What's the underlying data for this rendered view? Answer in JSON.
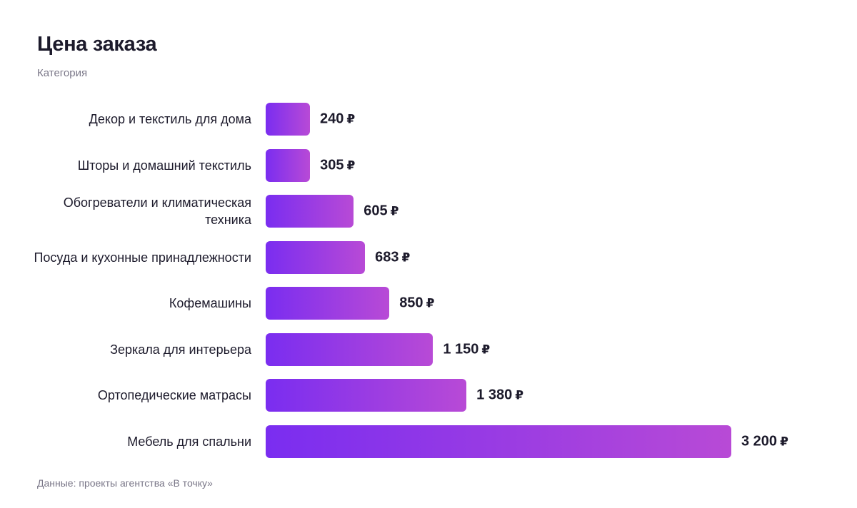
{
  "chart_data": {
    "type": "bar",
    "orientation": "horizontal",
    "title": "Цена заказа",
    "subtitle": "Категория",
    "source": "Данные: проекты агентства «В точку»",
    "currency": "₽",
    "categories": [
      "Декор и текстиль для дома",
      "Шторы и домашний текстиль",
      "Обогреватели и климатическая техника",
      "Посуда и кухонные принадлежности",
      "Кофемашины",
      "Зеркала для интерьера",
      "Ортопедические матрасы",
      "Мебель для спальни"
    ],
    "values": [
      240,
      305,
      605,
      683,
      850,
      1150,
      1380,
      3200
    ],
    "value_labels": [
      "240",
      "305",
      "605",
      "683",
      "850",
      "1 150",
      "1 380",
      "3 200"
    ],
    "xlim": [
      0,
      3200
    ],
    "grid": false,
    "colors": {
      "bar_start": "#7a2df0",
      "bar_end": "#b84ad6",
      "text": "#1c1a2b",
      "muted": "#7a7788"
    }
  }
}
